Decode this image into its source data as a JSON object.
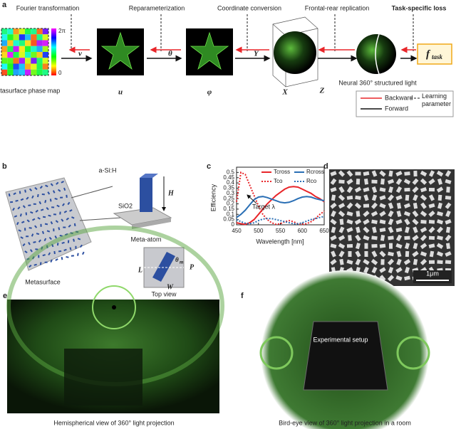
{
  "panel_labels": [
    "a",
    "b",
    "c",
    "d",
    "e",
    "f"
  ],
  "panel_a": {
    "steps": [
      "Fourier transformation",
      "Reparameterization",
      "Coordinate conversion",
      "Frontal-rear replication",
      "Task-specific loss"
    ],
    "phase_map_caption": "Metasurface phase map",
    "colorbar_ticks": [
      "2π",
      "0"
    ],
    "symbols": [
      "v",
      "θ",
      "Y"
    ],
    "image_labels": [
      "u",
      "φ",
      "X",
      "Z"
    ],
    "sphere_caption": "Neural 360° structured light",
    "loss": {
      "symbol": "f",
      "subscript": "task"
    },
    "legend": [
      "Backward",
      "Forward",
      "Learning parameter"
    ]
  },
  "panel_b": {
    "material": "a-Si:H",
    "height": "H",
    "substrate": "SiO2",
    "unit_caption": "Meta-atom",
    "surface_caption": "Metasurface",
    "top_view_caption": "Top view",
    "angle": {
      "symbol": "θ",
      "subscript": "m"
    },
    "length": "L",
    "width": "W",
    "period": "P"
  },
  "chart_data": {
    "type": "line",
    "xlabel": "Wavelength [nm]",
    "ylabel": "Efficiency",
    "x": [
      450,
      460,
      470,
      480,
      490,
      500,
      510,
      520,
      530,
      540,
      550,
      560,
      570,
      580,
      590,
      600,
      610,
      620,
      630,
      640,
      650
    ],
    "xlim": [
      450,
      650
    ],
    "xticks": [
      450,
      500,
      550,
      600,
      650
    ],
    "ylim": [
      0,
      0.55
    ],
    "yticks": [
      0,
      0.05,
      0.1,
      0.15,
      0.2,
      0.25,
      0.3,
      0.35,
      0.4,
      0.45,
      0.5
    ],
    "legend": "upper right",
    "annotation": "Target λ",
    "series": [
      {
        "name": "Tcross",
        "color": "#e8262a",
        "style": "solid",
        "values": [
          0.02,
          0.01,
          0.005,
          0.02,
          0.05,
          0.1,
          0.15,
          0.2,
          0.24,
          0.28,
          0.31,
          0.34,
          0.36,
          0.365,
          0.36,
          0.34,
          0.32,
          0.3,
          0.27,
          0.25,
          0.22
        ]
      },
      {
        "name": "Tco",
        "color": "#e8262a",
        "style": "dotted",
        "values": [
          0.22,
          0.5,
          0.48,
          0.38,
          0.28,
          0.18,
          0.1,
          0.05,
          0.02,
          0.005,
          0.01,
          0.03,
          0.04,
          0.03,
          0.01,
          0.005,
          0.01,
          0.03,
          0.06,
          0.1,
          0.13
        ]
      },
      {
        "name": "Rcross",
        "color": "#2a6fb5",
        "style": "solid",
        "values": [
          0.07,
          0.1,
          0.14,
          0.19,
          0.24,
          0.265,
          0.27,
          0.26,
          0.245,
          0.23,
          0.215,
          0.21,
          0.215,
          0.23,
          0.25,
          0.265,
          0.27,
          0.265,
          0.25,
          0.24,
          0.23
        ]
      },
      {
        "name": "Rco",
        "color": "#2a6fb5",
        "style": "dotted",
        "values": [
          0.05,
          0.03,
          0.015,
          0.01,
          0.02,
          0.04,
          0.055,
          0.06,
          0.06,
          0.05,
          0.04,
          0.03,
          0.02,
          0.01,
          0.01,
          0.02,
          0.035,
          0.05,
          0.06,
          0.07,
          0.08
        ]
      }
    ]
  },
  "panel_d": {
    "scale_bar": "1μm"
  },
  "panel_e": {
    "caption": "Hemispherical view of 360° light projection"
  },
  "panel_f": {
    "annotation": "Experimental setup",
    "caption": "Bird-eye view of 360° light projection in a room"
  }
}
